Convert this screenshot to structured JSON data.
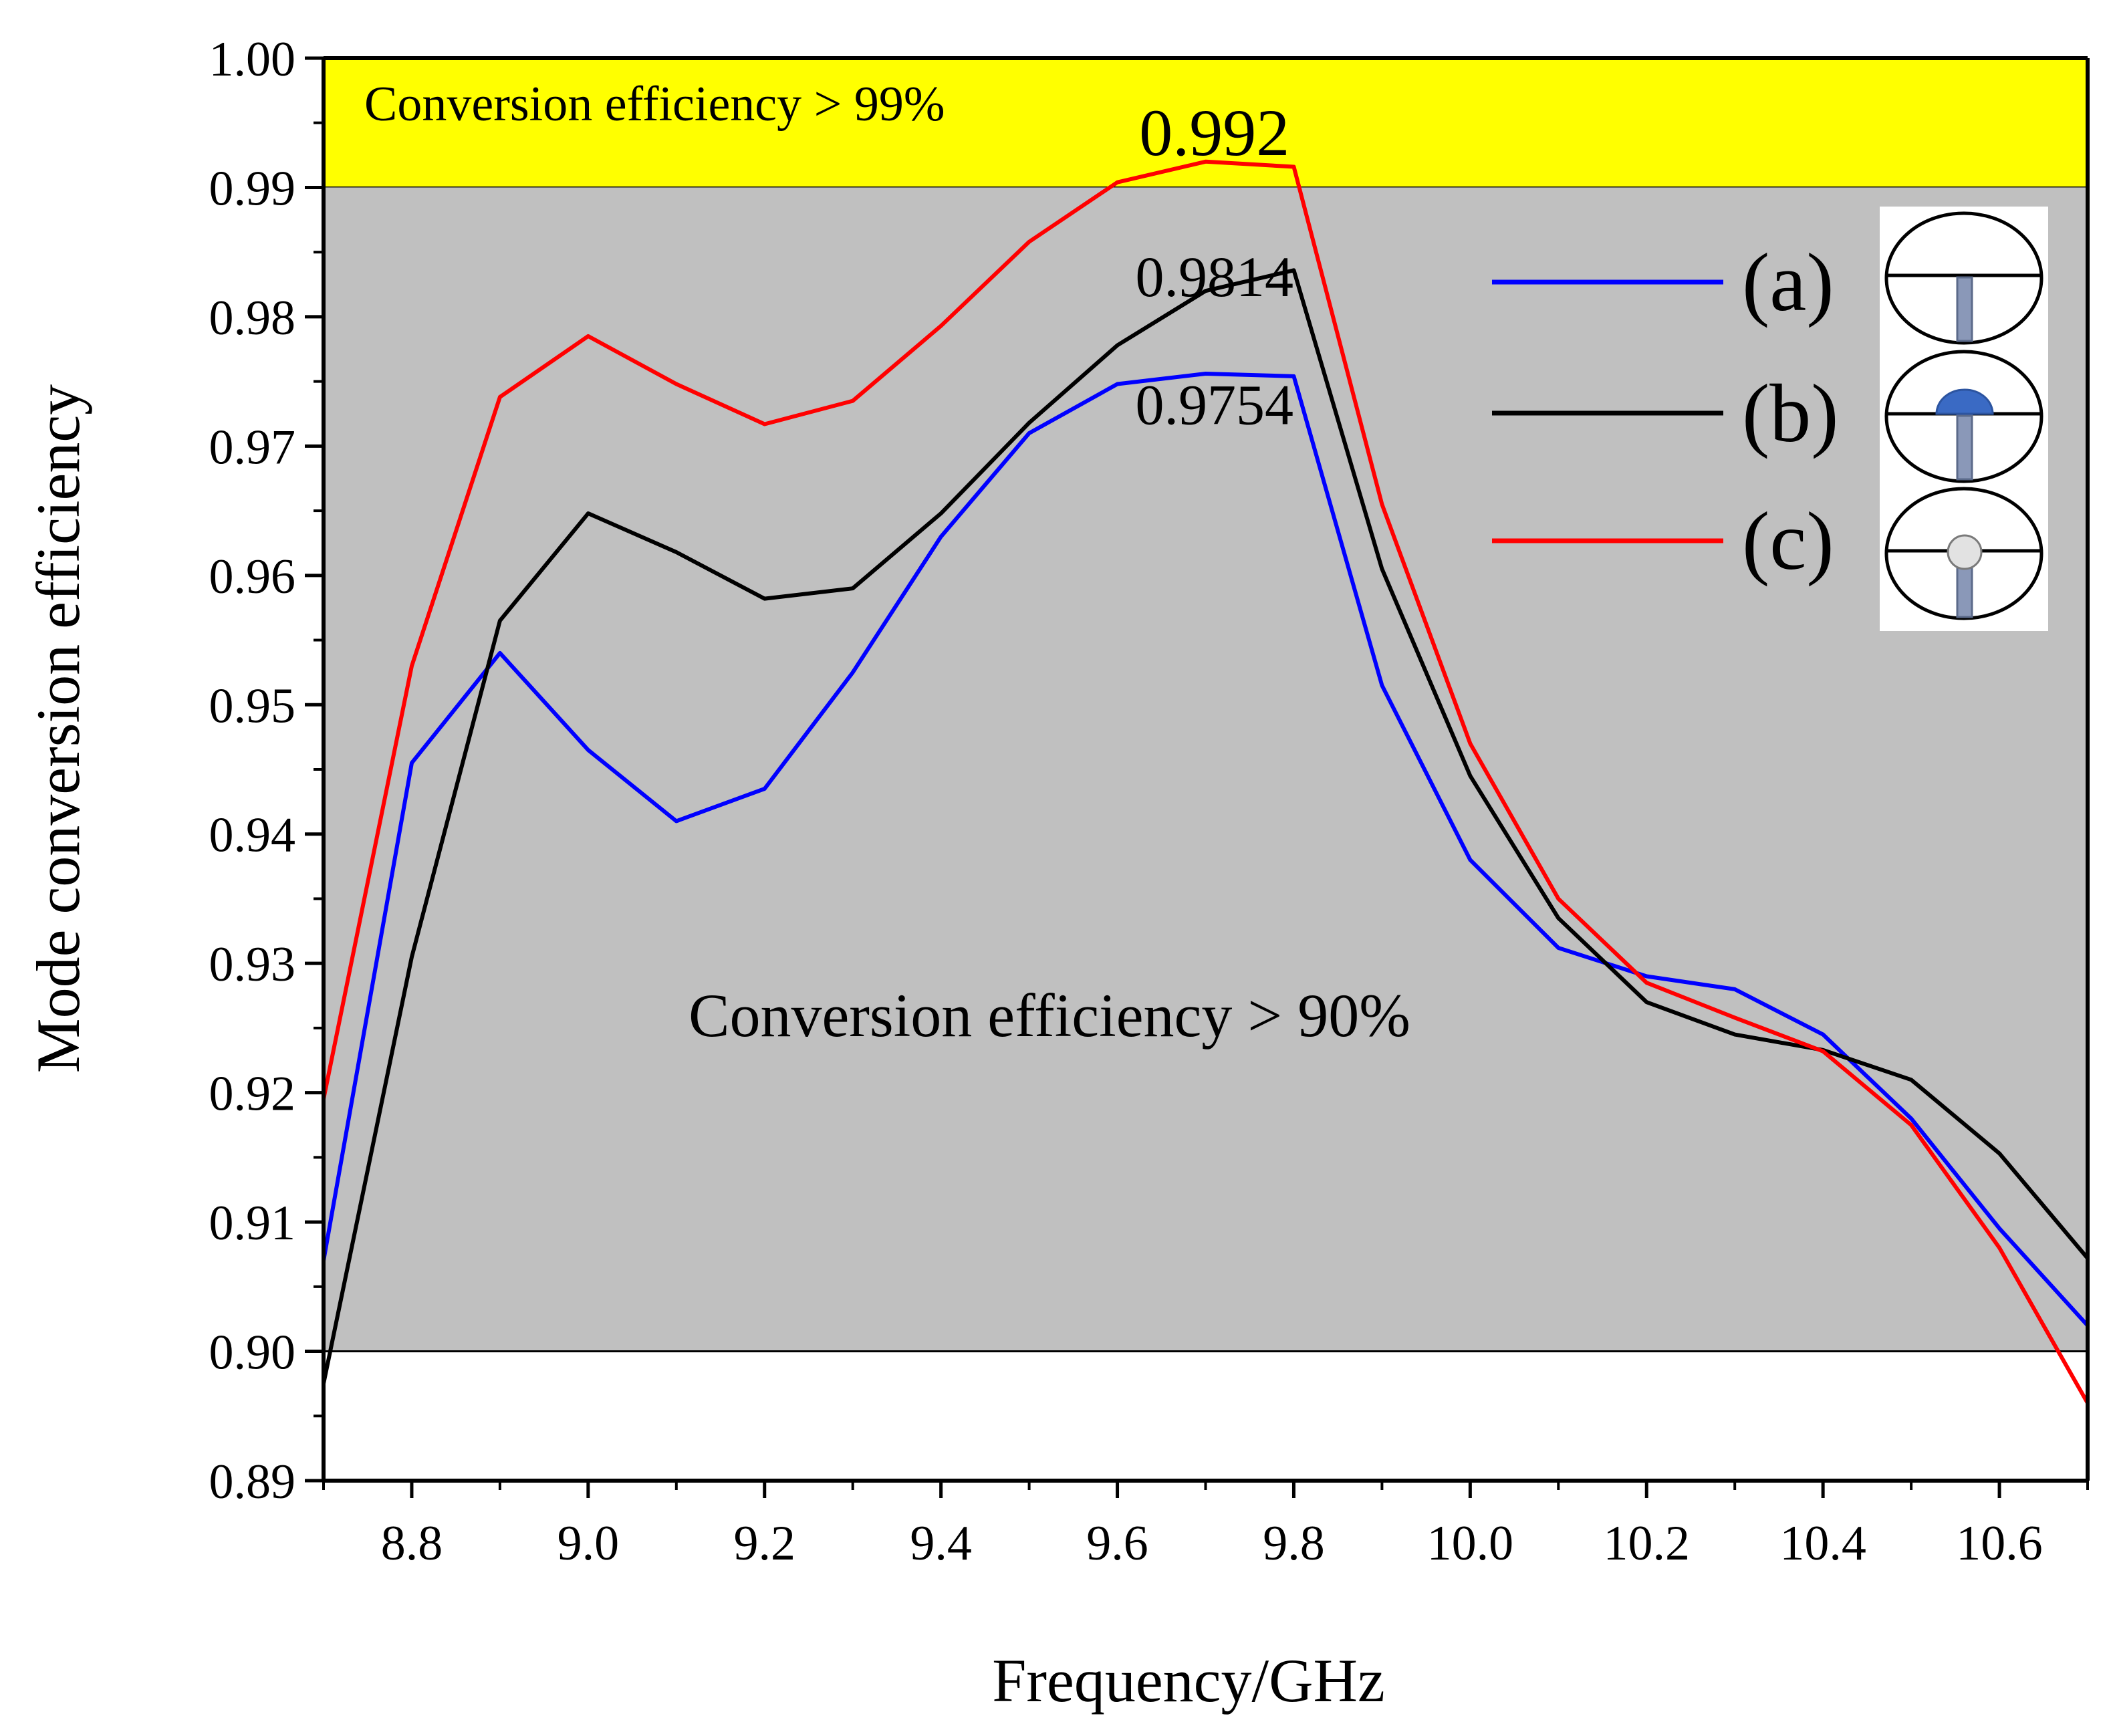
{
  "chart_data": {
    "type": "line",
    "title": "",
    "xlabel": "Frequency/GHz",
    "ylabel": "Mode conversion efficiency",
    "xlim": [
      8.7,
      10.7
    ],
    "ylim": [
      0.89,
      1.0
    ],
    "x_ticks": [
      "8.8",
      "9.0",
      "9.2",
      "9.4",
      "9.6",
      "9.8",
      "10.0",
      "10.2",
      "10.4",
      "10.6"
    ],
    "y_ticks": [
      "0.89",
      "0.90",
      "0.91",
      "0.92",
      "0.93",
      "0.94",
      "0.95",
      "0.96",
      "0.97",
      "0.98",
      "0.99",
      "1.00"
    ],
    "x": [
      8.7,
      8.8,
      8.9,
      9.0,
      9.1,
      9.2,
      9.3,
      9.4,
      9.5,
      9.6,
      9.7,
      9.8,
      9.9,
      10.0,
      10.1,
      10.2,
      10.3,
      10.4,
      10.5,
      10.6,
      10.7
    ],
    "series": [
      {
        "name": "(a)",
        "color": "#0000ff",
        "values": [
          0.907,
          0.9455,
          0.954,
          0.9465,
          0.941,
          0.9435,
          0.9525,
          0.963,
          0.971,
          0.9748,
          0.9756,
          0.9754,
          0.9515,
          0.938,
          0.9312,
          0.929,
          0.928,
          0.9245,
          0.918,
          0.9095,
          0.902
        ]
      },
      {
        "name": "(b)",
        "color": "#000000",
        "values": [
          0.8975,
          0.9305,
          0.9565,
          0.9648,
          0.9618,
          0.9582,
          0.959,
          0.9648,
          0.9718,
          0.9778,
          0.982,
          0.9836,
          0.9605,
          0.9445,
          0.9335,
          0.927,
          0.9245,
          0.9233,
          0.921,
          0.9153,
          0.9072
        ]
      },
      {
        "name": "(c)",
        "color": "#ff0000",
        "values": [
          0.9195,
          0.953,
          0.9738,
          0.9785,
          0.9748,
          0.9717,
          0.9735,
          0.9793,
          0.9858,
          0.9904,
          0.992,
          0.9916,
          0.9655,
          0.947,
          0.935,
          0.9285,
          0.9258,
          0.9232,
          0.9175,
          0.908,
          0.896
        ]
      }
    ],
    "bands": [
      {
        "from": 0.99,
        "to": 1.0,
        "color": "#ffff00",
        "label": "Conversion efficiency > 99%"
      },
      {
        "from": 0.9,
        "to": 0.99,
        "color": "#c0c0c0",
        "label": "Conversion efficiency > 90%"
      }
    ],
    "annotations": [
      {
        "text": "0.992",
        "x": 9.71,
        "y": 0.9925,
        "size": "large"
      },
      {
        "text": "0.9814",
        "x": 9.71,
        "y": 0.9816,
        "size": "medium"
      },
      {
        "text": "0.9754",
        "x": 9.71,
        "y": 0.9717,
        "size": "medium"
      }
    ],
    "legend_position": "top-right"
  }
}
